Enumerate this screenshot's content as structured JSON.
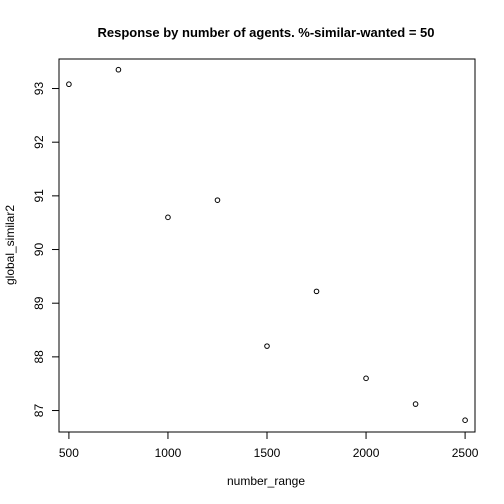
{
  "chart_data": {
    "type": "scatter",
    "title": "Response by number of agents. %-similar-wanted =  50",
    "xlabel": "number_range",
    "ylabel": "global_similar2",
    "xlim": [
      450,
      2550
    ],
    "ylim": [
      86.6,
      93.55
    ],
    "x_ticks": [
      500,
      1000,
      1500,
      2000,
      2500
    ],
    "y_ticks": [
      87,
      88,
      89,
      90,
      91,
      92,
      93
    ],
    "grid": false,
    "legend": "none",
    "marker": "open-circle",
    "point_color": "#000000",
    "x": [
      500,
      750,
      1000,
      1250,
      1500,
      1750,
      2000,
      2250,
      2500
    ],
    "y": [
      93.08,
      93.35,
      90.6,
      90.92,
      88.2,
      89.22,
      87.6,
      87.12,
      86.82
    ]
  }
}
